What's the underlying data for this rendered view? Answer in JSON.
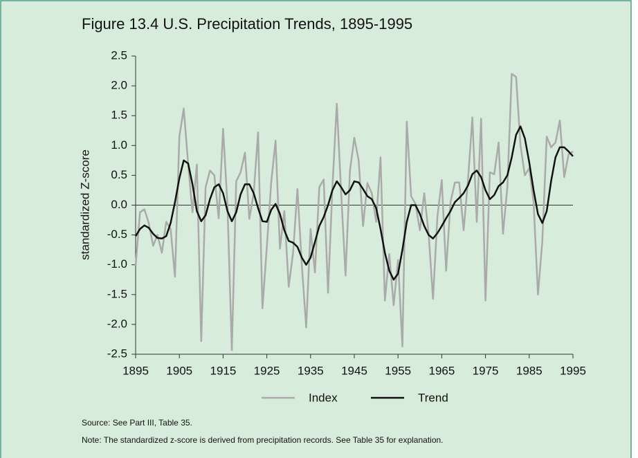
{
  "chart_data": {
    "type": "line",
    "title": "Figure 13.4  U.S. Precipitation Trends, 1895-1995",
    "y_label": "standardized Z-score",
    "x": [
      1895,
      1896,
      1897,
      1898,
      1899,
      1900,
      1901,
      1902,
      1903,
      1904,
      1905,
      1906,
      1907,
      1908,
      1909,
      1910,
      1911,
      1912,
      1913,
      1914,
      1915,
      1916,
      1917,
      1918,
      1919,
      1920,
      1921,
      1922,
      1923,
      1924,
      1925,
      1926,
      1927,
      1928,
      1929,
      1930,
      1931,
      1932,
      1933,
      1934,
      1935,
      1936,
      1937,
      1938,
      1939,
      1940,
      1941,
      1942,
      1943,
      1944,
      1945,
      1946,
      1947,
      1948,
      1949,
      1950,
      1951,
      1952,
      1953,
      1954,
      1955,
      1956,
      1957,
      1958,
      1959,
      1960,
      1961,
      1962,
      1963,
      1964,
      1965,
      1966,
      1967,
      1968,
      1969,
      1970,
      1971,
      1972,
      1973,
      1974,
      1975,
      1976,
      1977,
      1978,
      1979,
      1980,
      1981,
      1982,
      1983,
      1984,
      1985,
      1986,
      1987,
      1988,
      1989,
      1990,
      1991,
      1992,
      1993,
      1994,
      1995
    ],
    "series": [
      {
        "name": "Index",
        "color": "#aaaaaa",
        "values": [
          -1.02,
          -0.12,
          -0.07,
          -0.3,
          -0.68,
          -0.5,
          -0.8,
          -0.28,
          -0.4,
          -1.2,
          1.15,
          1.62,
          0.7,
          -0.12,
          0.68,
          -2.28,
          0.3,
          0.58,
          0.5,
          -0.22,
          1.28,
          0.0,
          -2.43,
          0.4,
          0.55,
          0.88,
          -0.23,
          0.2,
          1.22,
          -1.73,
          -0.7,
          0.38,
          1.08,
          -0.73,
          -0.1,
          -1.37,
          -0.8,
          0.27,
          -1.0,
          -2.05,
          -0.4,
          -1.13,
          0.3,
          0.43,
          -1.47,
          0.3,
          1.7,
          0.2,
          -1.18,
          0.57,
          1.13,
          0.75,
          -0.35,
          0.37,
          0.2,
          -0.28,
          0.8,
          -1.6,
          -0.82,
          -1.68,
          -0.92,
          -2.37,
          1.4,
          0.15,
          0.02,
          -0.42,
          0.2,
          -0.48,
          -1.57,
          -0.2,
          0.42,
          -1.1,
          0.05,
          0.38,
          0.38,
          -0.42,
          0.42,
          1.47,
          -0.28,
          1.45,
          -1.6,
          0.55,
          0.52,
          1.05,
          -0.48,
          0.3,
          2.2,
          2.15,
          1.0,
          0.5,
          0.62,
          0.05,
          -1.5,
          -0.6,
          1.15,
          0.97,
          1.05,
          1.42,
          0.47,
          0.85,
          0.9
        ]
      },
      {
        "name": "Trend",
        "color": "#111111",
        "values": [
          -0.52,
          -0.4,
          -0.34,
          -0.38,
          -0.48,
          -0.55,
          -0.56,
          -0.52,
          -0.3,
          0.05,
          0.45,
          0.75,
          0.7,
          0.35,
          -0.1,
          -0.27,
          -0.17,
          0.1,
          0.3,
          0.35,
          0.2,
          -0.1,
          -0.27,
          -0.12,
          0.18,
          0.35,
          0.35,
          0.2,
          -0.05,
          -0.27,
          -0.28,
          -0.08,
          0.02,
          -0.15,
          -0.42,
          -0.6,
          -0.63,
          -0.7,
          -0.88,
          -1.0,
          -0.88,
          -0.62,
          -0.35,
          -0.2,
          0.0,
          0.25,
          0.4,
          0.3,
          0.18,
          0.25,
          0.4,
          0.38,
          0.27,
          0.15,
          0.1,
          -0.05,
          -0.4,
          -0.8,
          -1.1,
          -1.25,
          -1.15,
          -0.75,
          -0.28,
          0.0,
          0.0,
          -0.15,
          -0.35,
          -0.5,
          -0.56,
          -0.47,
          -0.35,
          -0.22,
          -0.1,
          0.05,
          0.12,
          0.2,
          0.33,
          0.52,
          0.58,
          0.47,
          0.25,
          0.1,
          0.17,
          0.32,
          0.38,
          0.5,
          0.8,
          1.18,
          1.32,
          1.12,
          0.72,
          0.25,
          -0.15,
          -0.3,
          -0.1,
          0.4,
          0.8,
          0.97,
          0.97,
          0.9,
          0.82
        ]
      }
    ],
    "xlim": [
      1895,
      1995
    ],
    "xticks": [
      1895,
      1905,
      1915,
      1925,
      1935,
      1945,
      1955,
      1965,
      1975,
      1985,
      1995
    ],
    "ylim": [
      -2.5,
      2.5
    ],
    "yticks": [
      2.5,
      {
        "value": 2,
        "label": "2.0"
      },
      1.5,
      {
        "value": 1,
        "label": "1.0"
      },
      0.5,
      {
        "value": 0,
        "label": "0.0"
      },
      -0.5,
      {
        "value": -1,
        "label": "-1.0"
      },
      -1.5,
      {
        "value": -2,
        "label": "-2.0"
      },
      -2.5
    ],
    "notes": [
      "Source: See Part III, Table 35.",
      "Note: The standardized z-score is derived from precipitation records.  See Table 35 for explanation."
    ]
  }
}
